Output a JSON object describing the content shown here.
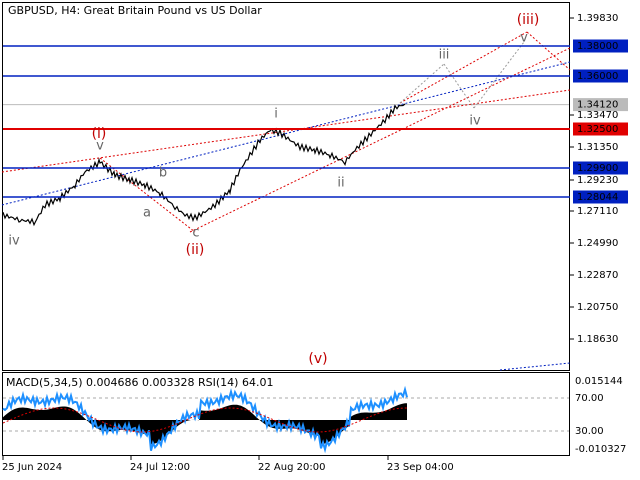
{
  "header": {
    "title": "GBPUSD, H4:  Great Britain Pound vs US Dollar"
  },
  "price_axis": {
    "labels": [
      "1.39830",
      "1.33470",
      "1.31350",
      "1.29230",
      "1.27110",
      "1.24990",
      "1.22870",
      "1.20750",
      "1.18630"
    ]
  },
  "levels": [
    {
      "label": "1.38000",
      "kind": "resistance"
    },
    {
      "label": "1.36000",
      "kind": "resistance"
    },
    {
      "label": "1.34120",
      "kind": "current"
    },
    {
      "label": "1.32500",
      "kind": "key"
    },
    {
      "label": "1.29900",
      "kind": "support"
    },
    {
      "label": "1.28044",
      "kind": "support"
    }
  ],
  "wave_labels": [
    "(iii)",
    "v",
    "iii",
    "iv",
    "i",
    "ii",
    "(i)",
    "v",
    "b",
    "a",
    "c",
    "(ii)",
    "iv",
    "(v)"
  ],
  "indicator": {
    "header": "MACD(5,34,5) 0.004686 0.003328 RSI(14) 64.01",
    "labels": [
      "0.015144",
      "70.00",
      "30.00",
      "-0.010327"
    ]
  },
  "time_axis": {
    "labels": [
      "25 Jun 2024",
      "24 Jul 12:00",
      "22 Aug 20:00",
      "23 Sep 04:00"
    ]
  }
}
